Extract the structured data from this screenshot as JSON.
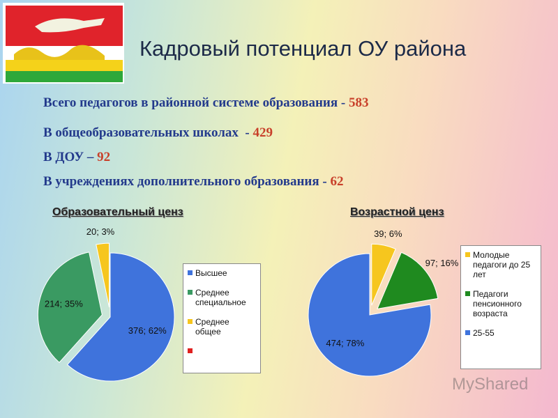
{
  "title": "Кадровый потенциал ОУ района",
  "summary": [
    {
      "text": "Всего педагогов в районной системе образования -",
      "value": 583
    },
    {
      "text": "В общеобразовательных школах  -",
      "value": 429
    },
    {
      "text": "В ДОУ –",
      "value": 92
    },
    {
      "text": "В учреждениях дополнительного образования -",
      "value": 62
    }
  ],
  "watermark": "MyShared",
  "chart_data": [
    {
      "type": "pie",
      "title": "Образовательный ценз",
      "categories": [
        "Высшее",
        "Среднее специальное",
        "Среднее общее"
      ],
      "values": [
        376,
        214,
        20
      ],
      "value_labels": [
        "376; 62%",
        "214; 35%",
        "20; 3%"
      ],
      "colors": [
        "#3f73dc",
        "#3a9a62",
        "#f6c61e"
      ]
    },
    {
      "type": "pie",
      "title": "Возрастной ценз",
      "categories": [
        "Молодые педагоги до 25 лет",
        "Педагоги пенсионного возраста",
        "25-55"
      ],
      "values": [
        39,
        97,
        474
      ],
      "value_labels": [
        "39; 6%",
        "97; 16%",
        "474; 78%"
      ],
      "colors": [
        "#f6c61e",
        "#1f8a1f",
        "#3f73dc"
      ]
    }
  ]
}
